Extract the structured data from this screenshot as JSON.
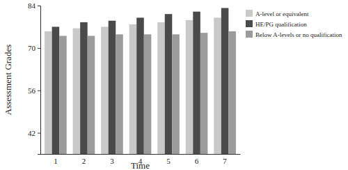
{
  "chart_data": {
    "type": "bar",
    "x_label": "Time",
    "y_label": "Assessment Grades",
    "categories": [
      "1",
      "2",
      "3",
      "4",
      "5",
      "6",
      "7"
    ],
    "series": [
      {
        "name": "A-level or equivalent",
        "color": "#c9c9c9",
        "values": [
          75.5,
          76.5,
          77,
          77.8,
          78.5,
          79.2,
          80
        ]
      },
      {
        "name": "HE/PG qualification",
        "color": "#4a4a4a",
        "values": [
          77,
          78.5,
          79,
          80,
          81.2,
          82,
          83.2
        ]
      },
      {
        "name": "Below A-levels or no qualification",
        "color": "#9b9b9b",
        "values": [
          74,
          74,
          74.5,
          74.5,
          74.5,
          75,
          75.5
        ]
      }
    ],
    "ylim": [
      35,
      84
    ],
    "yticks": [
      42,
      56,
      70,
      84
    ],
    "grid": false,
    "legend": "right"
  }
}
